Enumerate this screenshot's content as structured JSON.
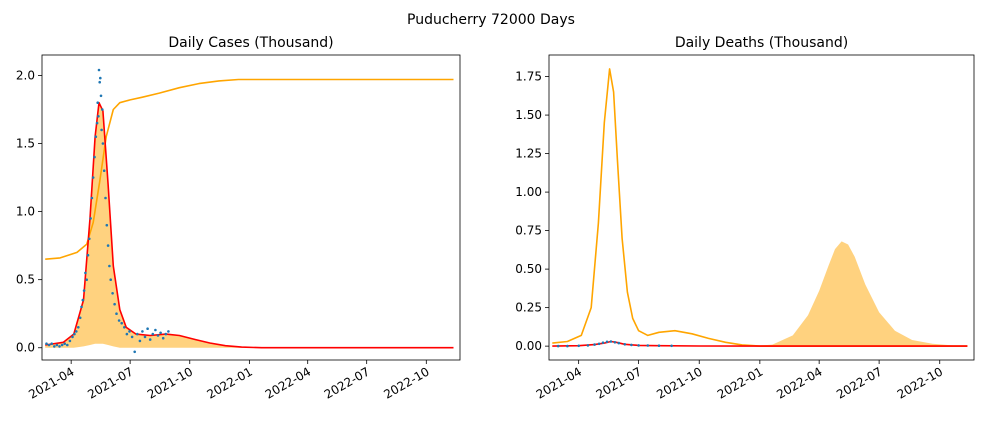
{
  "figure": {
    "suptitle": "Puducherry 72000 Days"
  },
  "chart_data": [
    {
      "type": "line",
      "title": "Daily Cases (Thousand)",
      "xlabel": "",
      "ylabel": "",
      "x_range": [
        "2021-02-15",
        "2022-11-22"
      ],
      "ylim": [
        -0.09,
        2.15
      ],
      "x_ticks": [
        "2021-04",
        "2021-07",
        "2021-10",
        "2022-01",
        "2022-04",
        "2022-07",
        "2022-10"
      ],
      "y_ticks": [
        "0.0",
        "0.5",
        "1.0",
        "1.5",
        "2.0"
      ],
      "y_tick_values": [
        0,
        0.5,
        1.0,
        1.5,
        2.0
      ],
      "grid": false,
      "colors": {
        "fit": "#ff0000",
        "cumulative": "#ffa500",
        "band": "#ffa500",
        "points": "#1f77b4"
      },
      "series": [
        {
          "kind": "line",
          "color": "#ffa500",
          "x": [
            "2021-02-20",
            "2021-03-15",
            "2021-04-10",
            "2021-04-25",
            "2021-05-05",
            "2021-05-15",
            "2021-05-25",
            "2021-06-05",
            "2021-06-15",
            "2021-07-01",
            "2021-07-20",
            "2021-08-15",
            "2021-09-15",
            "2021-10-15",
            "2021-11-15",
            "2021-12-15",
            "2022-01-15",
            "2022-03-01",
            "2022-06-01",
            "2022-09-01",
            "2022-11-12"
          ],
          "y": [
            0.65,
            0.66,
            0.7,
            0.76,
            0.92,
            1.22,
            1.55,
            1.75,
            1.8,
            1.82,
            1.84,
            1.87,
            1.91,
            1.94,
            1.96,
            1.97,
            1.97,
            1.97,
            1.97,
            1.97,
            1.97
          ]
        },
        {
          "kind": "line",
          "color": "#ff0000",
          "x": [
            "2021-02-20",
            "2021-03-20",
            "2021-04-05",
            "2021-04-20",
            "2021-04-30",
            "2021-05-08",
            "2021-05-14",
            "2021-05-20",
            "2021-05-28",
            "2021-06-05",
            "2021-06-15",
            "2021-06-25",
            "2021-07-10",
            "2021-08-01",
            "2021-08-25",
            "2021-09-15",
            "2021-10-10",
            "2021-11-01",
            "2021-11-25",
            "2021-12-20",
            "2022-01-20",
            "2022-03-01",
            "2022-06-01",
            "2022-09-01",
            "2022-11-12"
          ],
          "y": [
            0.02,
            0.04,
            0.1,
            0.35,
            0.95,
            1.55,
            1.8,
            1.74,
            1.2,
            0.6,
            0.28,
            0.15,
            0.1,
            0.09,
            0.1,
            0.09,
            0.06,
            0.035,
            0.015,
            0.005,
            0.0,
            0.0,
            0.0,
            0.0,
            0.0
          ]
        },
        {
          "kind": "band",
          "color": "#ffa500",
          "x": [
            "2021-02-20",
            "2021-03-20",
            "2021-04-05",
            "2021-04-20",
            "2021-04-30",
            "2021-05-08",
            "2021-05-14",
            "2021-05-20",
            "2021-05-28",
            "2021-06-05",
            "2021-06-15",
            "2021-06-25",
            "2021-07-10",
            "2021-08-01",
            "2021-08-25",
            "2021-09-15",
            "2021-10-10",
            "2021-11-01",
            "2021-11-25",
            "2021-12-20",
            "2022-01-20"
          ],
          "upper": [
            0.02,
            0.04,
            0.1,
            0.38,
            0.98,
            1.58,
            1.8,
            1.74,
            1.2,
            0.6,
            0.28,
            0.15,
            0.1,
            0.09,
            0.1,
            0.09,
            0.06,
            0.035,
            0.015,
            0.005,
            0.0
          ],
          "lower": [
            0.0,
            0.0,
            0.0,
            0.01,
            0.02,
            0.03,
            0.03,
            0.03,
            0.02,
            0.01,
            0.0,
            0.0,
            0.0,
            0.0,
            0.0,
            0.0,
            0.0,
            0.0,
            0.0,
            0.0,
            0.0
          ]
        },
        {
          "kind": "scatter",
          "color": "#1f77b4",
          "x": [
            "2021-02-22",
            "2021-02-26",
            "2021-03-02",
            "2021-03-06",
            "2021-03-10",
            "2021-03-14",
            "2021-03-18",
            "2021-03-22",
            "2021-03-26",
            "2021-03-30",
            "2021-04-03",
            "2021-04-06",
            "2021-04-09",
            "2021-04-12",
            "2021-04-15",
            "2021-04-17",
            "2021-04-19",
            "2021-04-21",
            "2021-04-23",
            "2021-04-25",
            "2021-04-27",
            "2021-04-29",
            "2021-05-01",
            "2021-05-03",
            "2021-05-05",
            "2021-05-07",
            "2021-05-09",
            "2021-05-11",
            "2021-05-12",
            "2021-05-13",
            "2021-05-14",
            "2021-05-15",
            "2021-05-16",
            "2021-05-17",
            "2021-05-18",
            "2021-05-19",
            "2021-05-20",
            "2021-05-22",
            "2021-05-24",
            "2021-05-26",
            "2021-05-28",
            "2021-05-30",
            "2021-06-01",
            "2021-06-04",
            "2021-06-07",
            "2021-06-10",
            "2021-06-14",
            "2021-06-18",
            "2021-06-22",
            "2021-06-26",
            "2021-06-30",
            "2021-07-04",
            "2021-07-08",
            "2021-07-12",
            "2021-07-16",
            "2021-07-20",
            "2021-07-24",
            "2021-07-28",
            "2021-08-01",
            "2021-08-05",
            "2021-08-09",
            "2021-08-13",
            "2021-08-17",
            "2021-08-21",
            "2021-08-25",
            "2021-08-29"
          ],
          "y": [
            0.03,
            0.02,
            0.03,
            0.01,
            0.02,
            0.01,
            0.02,
            0.03,
            0.02,
            0.05,
            0.08,
            0.1,
            0.12,
            0.15,
            0.22,
            0.3,
            0.35,
            0.42,
            0.55,
            0.5,
            0.68,
            0.8,
            0.95,
            1.1,
            1.25,
            1.4,
            1.55,
            1.65,
            1.8,
            1.7,
            2.04,
            1.95,
            1.98,
            1.85,
            1.6,
            1.75,
            1.5,
            1.3,
            1.1,
            0.9,
            0.75,
            0.6,
            0.5,
            0.4,
            0.32,
            0.25,
            0.2,
            0.18,
            0.15,
            0.1,
            0.12,
            0.08,
            -0.03,
            0.1,
            0.05,
            0.12,
            0.08,
            0.14,
            0.06,
            0.1,
            0.13,
            0.09,
            0.11,
            0.07,
            0.1,
            0.12
          ]
        }
      ]
    },
    {
      "type": "line",
      "title": "Daily Deaths (Thousand)",
      "xlabel": "",
      "ylabel": "",
      "x_range": [
        "2021-02-15",
        "2022-11-22"
      ],
      "ylim": [
        -0.09,
        1.89
      ],
      "x_ticks": [
        "2021-04",
        "2021-07",
        "2021-10",
        "2022-01",
        "2022-04",
        "2022-07",
        "2022-10"
      ],
      "y_ticks": [
        "0.00",
        "0.25",
        "0.50",
        "0.75",
        "1.00",
        "1.25",
        "1.50",
        "1.75"
      ],
      "y_tick_values": [
        0,
        0.25,
        0.5,
        0.75,
        1.0,
        1.25,
        1.5,
        1.75
      ],
      "grid": false,
      "colors": {
        "fit": "#ff0000",
        "curve": "#ffa500",
        "band": "#ffa500",
        "points": "#1f77b4"
      },
      "series": [
        {
          "kind": "line",
          "color": "#ffa500",
          "x": [
            "2021-02-20",
            "2021-03-15",
            "2021-04-05",
            "2021-04-20",
            "2021-05-01",
            "2021-05-10",
            "2021-05-18",
            "2021-05-24",
            "2021-05-30",
            "2021-06-06",
            "2021-06-14",
            "2021-06-22",
            "2021-07-01",
            "2021-07-15",
            "2021-08-01",
            "2021-08-25",
            "2021-09-20",
            "2021-10-15",
            "2021-11-10",
            "2021-12-05",
            "2022-01-01",
            "2022-03-01",
            "2022-06-01",
            "2022-09-01",
            "2022-11-12"
          ],
          "y": [
            0.02,
            0.03,
            0.07,
            0.25,
            0.8,
            1.45,
            1.8,
            1.65,
            1.2,
            0.7,
            0.35,
            0.18,
            0.1,
            0.07,
            0.09,
            0.1,
            0.08,
            0.05,
            0.025,
            0.008,
            0.0,
            0.0,
            0.0,
            0.0,
            0.0
          ]
        },
        {
          "kind": "band",
          "color": "#ffa500",
          "x": [
            "2021-12-20",
            "2022-01-20",
            "2022-02-20",
            "2022-03-15",
            "2022-04-01",
            "2022-04-15",
            "2022-04-25",
            "2022-05-05",
            "2022-05-15",
            "2022-05-25",
            "2022-06-10",
            "2022-07-01",
            "2022-07-25",
            "2022-08-20",
            "2022-09-20",
            "2022-10-20",
            "2022-11-12"
          ],
          "upper": [
            0.0,
            0.01,
            0.07,
            0.2,
            0.36,
            0.52,
            0.63,
            0.68,
            0.66,
            0.58,
            0.4,
            0.22,
            0.1,
            0.04,
            0.015,
            0.005,
            0.002
          ],
          "lower": [
            0.0,
            0.0,
            0.0,
            0.0,
            0.0,
            0.0,
            0.0,
            0.0,
            0.0,
            0.0,
            0.0,
            0.0,
            0.0,
            0.0,
            0.0,
            0.0,
            0.0
          ]
        },
        {
          "kind": "line",
          "color": "#ff0000",
          "x": [
            "2021-02-20",
            "2021-04-01",
            "2021-04-25",
            "2021-05-10",
            "2021-05-20",
            "2021-05-28",
            "2021-06-10",
            "2021-07-01",
            "2021-08-01",
            "2021-10-01",
            "2022-01-01",
            "2022-06-01",
            "2022-11-12"
          ],
          "y": [
            0.0,
            0.003,
            0.01,
            0.02,
            0.03,
            0.025,
            0.012,
            0.005,
            0.003,
            0.001,
            0.0,
            0.0,
            0.0
          ]
        },
        {
          "kind": "scatter",
          "color": "#1f77b4",
          "x": [
            "2021-03-01",
            "2021-03-15",
            "2021-04-01",
            "2021-04-15",
            "2021-04-25",
            "2021-05-02",
            "2021-05-08",
            "2021-05-14",
            "2021-05-20",
            "2021-05-26",
            "2021-06-01",
            "2021-06-10",
            "2021-06-20",
            "2021-07-01",
            "2021-07-15",
            "2021-08-01",
            "2021-08-20"
          ],
          "y": [
            0.0,
            0.0,
            0.002,
            0.005,
            0.01,
            0.015,
            0.022,
            0.028,
            0.03,
            0.025,
            0.02,
            0.012,
            0.008,
            0.005,
            0.004,
            0.003,
            0.002
          ]
        }
      ]
    }
  ]
}
